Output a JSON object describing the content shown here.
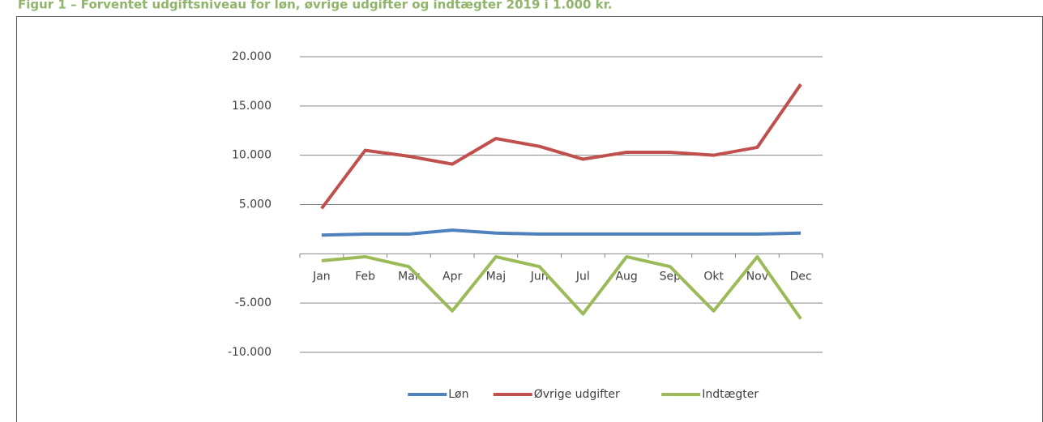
{
  "chart_data": {
    "type": "line",
    "title": "Figur 1 – Forventet udgiftsniveau for løn, øvrige udgifter og indtægter 2019 i 1.000 kr.",
    "categories": [
      "Jan",
      "Feb",
      "Mar",
      "Apr",
      "Maj",
      "Jun",
      "Jul",
      "Aug",
      "Sep",
      "Okt",
      "Nov",
      "Dec"
    ],
    "series": [
      {
        "name": "Løn",
        "color": "#4f81bd",
        "values": [
          1900,
          2000,
          2000,
          2400,
          2100,
          2000,
          2000,
          2000,
          2000,
          2000,
          2000,
          2100
        ]
      },
      {
        "name": "Øvrige udgifter",
        "color": "#c0504d",
        "values": [
          4600,
          10500,
          9900,
          9100,
          11700,
          10900,
          9600,
          10300,
          10300,
          10000,
          10800,
          17200
        ]
      },
      {
        "name": "Indtægter",
        "color": "#9bbb59",
        "values": [
          -700,
          -300,
          -1300,
          -5800,
          -300,
          -1300,
          -6100,
          -300,
          -1300,
          -5800,
          -300,
          -6600
        ]
      }
    ],
    "ylim": [
      -10000,
      20000
    ],
    "yticks": [
      {
        "value": -10000,
        "label": "-10.000"
      },
      {
        "value": -5000,
        "label": "-5.000"
      },
      {
        "value": 5000,
        "label": "5.000"
      },
      {
        "value": 10000,
        "label": "10.000"
      },
      {
        "value": 15000,
        "label": "15.000"
      },
      {
        "value": 20000,
        "label": "20.000"
      }
    ],
    "grid": true,
    "legend": "bottom"
  }
}
